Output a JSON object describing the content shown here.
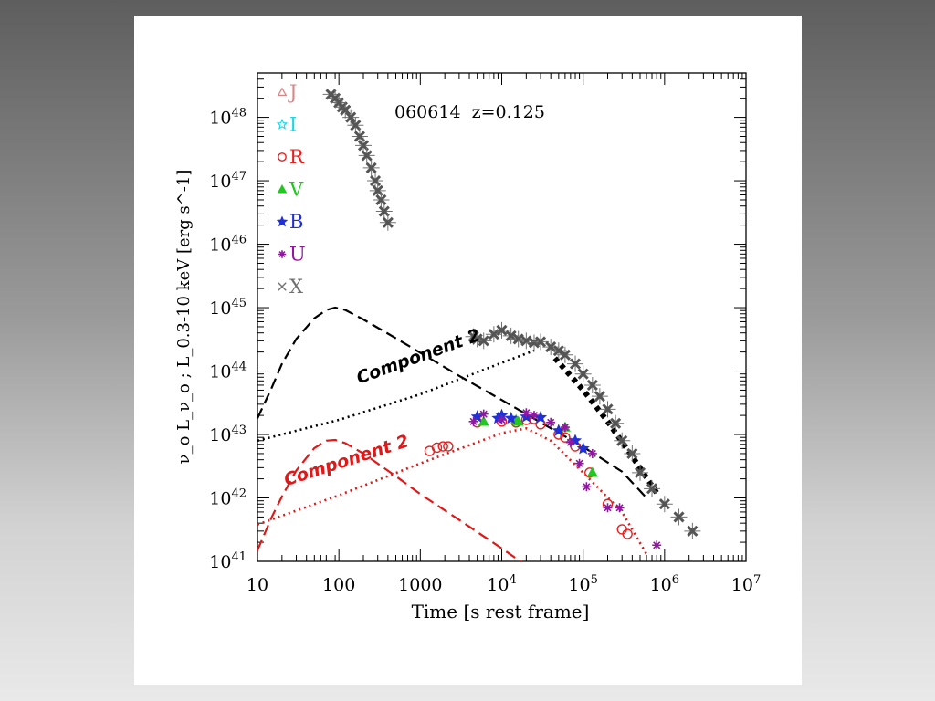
{
  "chart_data": {
    "type": "scatter",
    "title": "060614  z=0.125",
    "xlabel": "Time [s rest frame]",
    "ylabel": "ν_o L_ν_o ;  L_0.3-10 keV [erg s^-1]",
    "x_scale": "log",
    "y_scale": "log",
    "xlim": [
      10,
      10000000
    ],
    "ylim": [
      1e+41,
      5e+48
    ],
    "x_ticks": [
      {
        "value": 10,
        "label": "10"
      },
      {
        "value": 100,
        "label": "100"
      },
      {
        "value": 1000,
        "label": "1000"
      },
      {
        "value": 10000,
        "base": "10",
        "exp": "4"
      },
      {
        "value": 100000,
        "base": "10",
        "exp": "5"
      },
      {
        "value": 1000000,
        "base": "10",
        "exp": "6"
      },
      {
        "value": 10000000,
        "base": "10",
        "exp": "7"
      }
    ],
    "y_ticks": [
      {
        "value": 1e+41,
        "base": "10",
        "exp": "41"
      },
      {
        "value": 1e+42,
        "base": "10",
        "exp": "42"
      },
      {
        "value": 1e+43,
        "base": "10",
        "exp": "43"
      },
      {
        "value": 1e+44,
        "base": "10",
        "exp": "44"
      },
      {
        "value": 1e+45,
        "base": "10",
        "exp": "45"
      },
      {
        "value": 1e+46,
        "base": "10",
        "exp": "46"
      },
      {
        "value": 1e+47,
        "base": "10",
        "exp": "47"
      },
      {
        "value": 1e+48,
        "base": "10",
        "exp": "48"
      }
    ],
    "legend": {
      "position": "top-left",
      "entries": [
        {
          "label": "J",
          "symbol": "triangle-open",
          "color": "#d98585"
        },
        {
          "label": "I",
          "symbol": "star-open",
          "color": "#18d8e8"
        },
        {
          "label": "R",
          "symbol": "circle-open",
          "color": "#e82020"
        },
        {
          "label": "V",
          "symbol": "triangle-filled",
          "color": "#20c820"
        },
        {
          "label": "B",
          "symbol": "star-filled",
          "color": "#2030d8"
        },
        {
          "label": "U",
          "symbol": "asterisk",
          "color": "#9018a0"
        },
        {
          "label": "X",
          "symbol": "cross",
          "color": "#707070"
        }
      ]
    },
    "annotations": [
      {
        "text": "Component 2",
        "color": "#000000",
        "x": 1000,
        "y": 1.4e+44,
        "angle": -20
      },
      {
        "text": "Component 2",
        "color": "#e01818",
        "x": 130,
        "y": 3.2e+42,
        "angle": -18
      }
    ],
    "curves": [
      {
        "name": "",
        "color": "#000000",
        "style": "dashed",
        "x": [
          10,
          15,
          20,
          30,
          50,
          70,
          90,
          120,
          200,
          400,
          1000,
          3000,
          10000,
          30000,
          100000,
          300000,
          600000
        ],
        "y": [
          1.8e+43,
          5.5e+43,
          1.3e+44,
          3.2e+44,
          6.8e+44,
          9.2e+44,
          1e+45,
          9.2e+44,
          6.5e+44,
          3.9e+44,
          1.95e+44,
          8.4e+43,
          3.5e+43,
          1.55e+43,
          6.4e+42,
          2.6e+42,
          1e+42
        ]
      },
      {
        "name": "",
        "color": "#000000",
        "style": "dotted",
        "x": [
          10,
          100,
          1000,
          10000,
          25000
        ],
        "y": [
          8e+42,
          1.7e+43,
          4.3e+43,
          1.35e+44,
          2.1e+44
        ]
      },
      {
        "name": "",
        "color": "#000000",
        "style": "dotted-thick",
        "x": [
          45000,
          100000,
          200000,
          400000,
          800000
        ],
        "y": [
          1.6e+44,
          5e+43,
          1.6e+43,
          4.5e+42,
          1.2e+42
        ]
      },
      {
        "name": "",
        "color": "#e01818",
        "style": "dashed",
        "x": [
          10,
          15,
          20,
          30,
          50,
          70,
          90,
          120,
          200,
          500,
          1000,
          3000,
          10000,
          30000
        ],
        "y": [
          1.5e+41,
          5e+41,
          1.05e+42,
          2.7e+42,
          6.1e+42,
          8e+42,
          8.2e+42,
          7.3e+42,
          5e+42,
          2.2e+42,
          1.15e+42,
          4.5e+41,
          1.6e+41,
          6e+40
        ]
      },
      {
        "name": "",
        "color": "#e01818",
        "style": "dotted",
        "x": [
          10,
          100,
          1000,
          10000,
          20000,
          40000,
          100000,
          300000,
          600000
        ],
        "y": [
          3.8e+41,
          1.1e+42,
          3.5e+42,
          1.05e+43,
          1.25e+43,
          8e+42,
          2.5e+42,
          6e+41,
          1.3e+41
        ]
      }
    ],
    "series": [
      {
        "name": "X",
        "color": "#707070",
        "marker": "cross",
        "x": [
          80,
          90,
          100,
          110,
          120,
          140,
          160,
          180,
          200,
          220,
          250,
          280,
          300,
          330,
          360,
          400,
          4500,
          5000,
          6000,
          8000,
          10000,
          13000,
          16000,
          20000,
          25000,
          30000,
          40000,
          50000,
          60000,
          80000,
          100000,
          130000,
          160000,
          200000,
          250000,
          300000,
          400000,
          500000,
          700000,
          1000000,
          1500000,
          2200000
        ],
        "y": [
          2.3e+48,
          2e+48,
          1.7e+48,
          1.45e+48,
          1.3e+48,
          1e+48,
          7.5e+47,
          5e+47,
          3.6e+47,
          2.5e+47,
          1.6e+47,
          1e+47,
          7e+46,
          5e+46,
          3.3e+46,
          2.2e+46,
          3.5e+44,
          3.2e+44,
          3e+44,
          3.8e+44,
          4.4e+44,
          3.6e+44,
          3.2e+44,
          3e+44,
          2.8e+44,
          2.9e+44,
          2.4e+44,
          2.1e+44,
          1.8e+44,
          1.3e+44,
          9e+43,
          6e+43,
          4e+43,
          2.5e+43,
          1.5e+43,
          8e+42,
          5e+42,
          2.5e+42,
          1.4e+42,
          8e+41,
          5e+41,
          3e+41
        ]
      },
      {
        "name": "R",
        "color": "#e82020",
        "marker": "circle-open",
        "x": [
          1300,
          1600,
          1900,
          2200,
          5000,
          10000,
          15000,
          20000,
          25000,
          30000,
          50000,
          60000,
          80000,
          120000,
          200000,
          300000,
          350000
        ],
        "y": [
          5.5e+42,
          6.2e+42,
          6.5e+42,
          6.5e+42,
          1.55e+43,
          1.6e+43,
          1.55e+43,
          1.7e+43,
          1.75e+43,
          1.45e+43,
          1e+43,
          9e+42,
          6.5e+42,
          2.5e+42,
          8e+41,
          3.2e+41,
          2.7e+41
        ]
      },
      {
        "name": "V",
        "color": "#20c820",
        "marker": "triangle-filled",
        "x": [
          6000,
          15000,
          16000,
          60000,
          130000
        ],
        "y": [
          1.6e+43,
          1.7e+43,
          1.6e+43,
          1.3e+43,
          2.5e+42
        ]
      },
      {
        "name": "B",
        "color": "#2030d8",
        "marker": "star-filled",
        "x": [
          5000,
          9000,
          10000,
          13000,
          20000,
          30000,
          50000,
          80000,
          100000
        ],
        "y": [
          1.9e+43,
          1.8e+43,
          2e+43,
          1.8e+43,
          1.9e+43,
          1.85e+43,
          1.15e+43,
          8e+42,
          6e+42
        ]
      },
      {
        "name": "U",
        "color": "#9018a0",
        "marker": "asterisk",
        "x": [
          4500,
          6000,
          10000,
          20000,
          25000,
          40000,
          60000,
          70000,
          90000,
          110000,
          130000,
          200000,
          280000,
          800000
        ],
        "y": [
          1.6e+43,
          2.1e+43,
          1.7e+43,
          2.2e+43,
          2e+43,
          1.55e+43,
          1.3e+43,
          7.5e+42,
          3.5e+42,
          1.5e+42,
          5e+42,
          7e+41,
          7e+41,
          1.8e+41
        ]
      }
    ]
  }
}
